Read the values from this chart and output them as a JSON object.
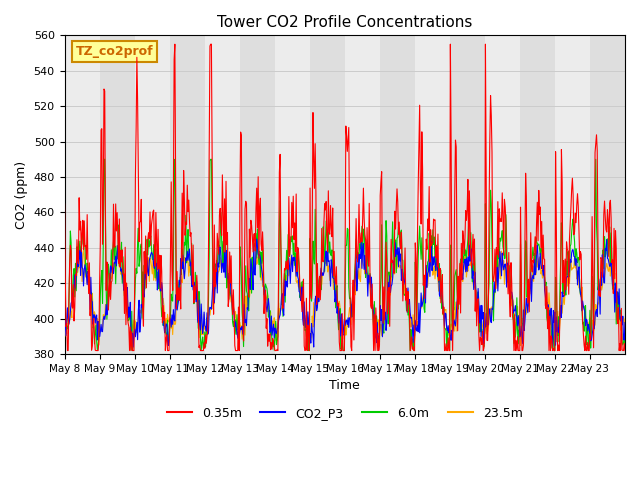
{
  "title": "Tower CO2 Profile Concentrations",
  "xlabel": "Time",
  "ylabel": "CO2 (ppm)",
  "ylim": [
    380,
    560
  ],
  "label_text": "TZ_co2prof",
  "series": [
    {
      "label": "0.35m",
      "color": "#ff0000"
    },
    {
      "label": "CO2_P3",
      "color": "#0000ff"
    },
    {
      "label": "6.0m",
      "color": "#00cc00"
    },
    {
      "label": "23.5m",
      "color": "#ffaa00"
    }
  ],
  "x_tick_positions": [
    0,
    1,
    2,
    3,
    4,
    5,
    6,
    7,
    8,
    9,
    10,
    11,
    12,
    13,
    14,
    15
  ],
  "x_tick_labels": [
    "May 8",
    "May 9",
    "May 10",
    "May 11",
    "May 12",
    "May 13",
    "May 14",
    "May 15",
    "May 16",
    "May 17",
    "May 18",
    "May 19",
    "May 20",
    "May 21",
    "May 22",
    "May 23"
  ],
  "bg_color": "#ffffff",
  "grid_color": "#cccccc",
  "legend_box_color": "#ffff99",
  "legend_box_edge": "#cc8800"
}
